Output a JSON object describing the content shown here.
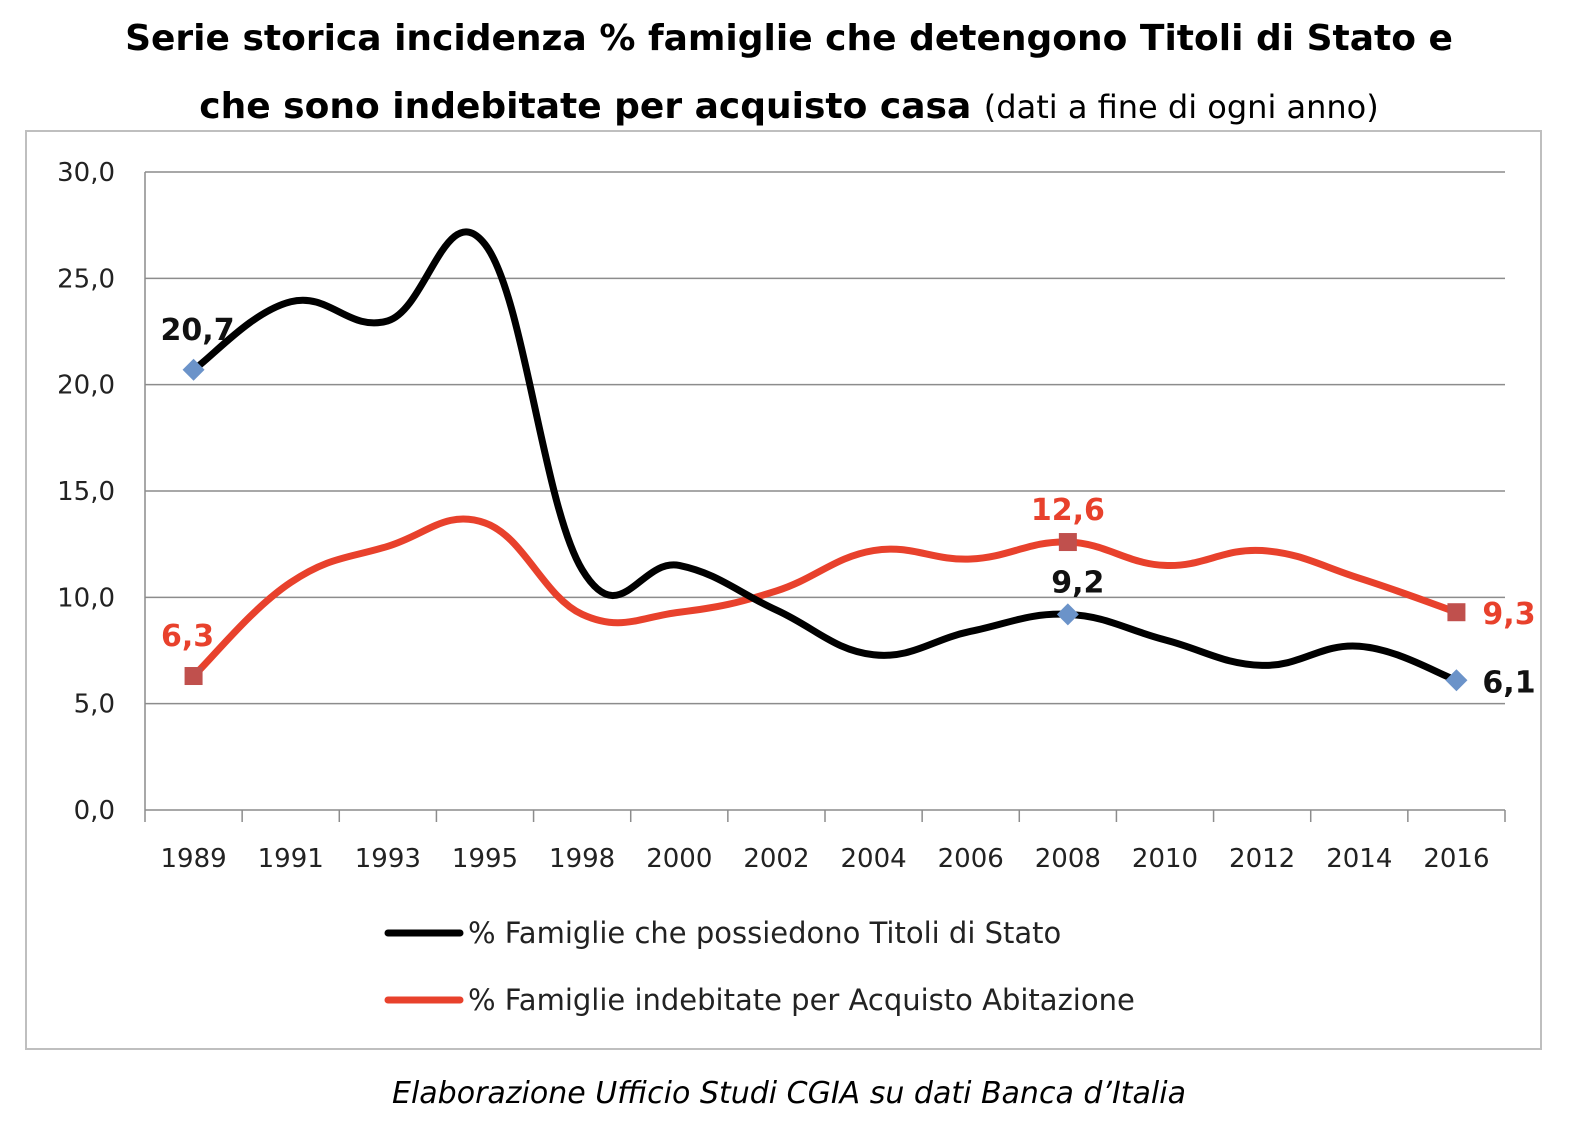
{
  "title": {
    "line1": "Serie storica incidenza % famiglie che detengono Titoli di Stato e",
    "line2_bold": "che sono indebitate per acquisto casa",
    "line2_note": "(dati a fine di ogni anno)"
  },
  "source": "Elaborazione Ufficio Studi CGIA su dati Banca d’Italia",
  "chart_data": {
    "type": "line",
    "title": "Serie storica incidenza % famiglie che detengono Titoli di Stato e che sono indebitate per acquisto casa (dati a fine di ogni anno)",
    "categories": [
      "1989",
      "1991",
      "1993",
      "1995",
      "1998",
      "2000",
      "2002",
      "2004",
      "2006",
      "2008",
      "2010",
      "2012",
      "2014",
      "2016"
    ],
    "ylim": [
      0,
      30
    ],
    "yticks": [
      "0,0",
      "5,0",
      "10,0",
      "15,0",
      "20,0",
      "25,0",
      "30,0"
    ],
    "ytick_values": [
      0,
      5,
      10,
      15,
      20,
      25,
      30
    ],
    "grid": true,
    "smooth": true,
    "legend_position": "bottom",
    "series": [
      {
        "name": "% Famiglie che possiedono Titoli di Stato",
        "color": "#000000",
        "marker_color": "#6b93c9",
        "marker": "diamond",
        "values": [
          20.7,
          23.9,
          23.0,
          26.6,
          11.3,
          11.5,
          9.4,
          7.3,
          8.4,
          9.2,
          8.0,
          6.8,
          7.7,
          6.1
        ],
        "labels": [
          {
            "index": 0,
            "text": "20,7",
            "pos": "above"
          },
          {
            "index": 9,
            "text": "9,2",
            "pos": "above"
          },
          {
            "index": 13,
            "text": "6,1",
            "pos": "right"
          }
        ]
      },
      {
        "name": "% Famiglie indebitate per Acquisto Abitazione",
        "color": "#e8412c",
        "marker_color": "#c0504d",
        "marker": "square",
        "values": [
          6.3,
          10.7,
          12.4,
          13.5,
          9.2,
          9.3,
          10.3,
          12.2,
          11.8,
          12.6,
          11.5,
          12.2,
          10.9,
          9.3
        ],
        "labels": [
          {
            "index": 0,
            "text": "6,3",
            "pos": "above-left"
          },
          {
            "index": 9,
            "text": "12,6",
            "pos": "above"
          },
          {
            "index": 13,
            "text": "9,3",
            "pos": "right"
          }
        ]
      }
    ],
    "marked_points": [
      0,
      9,
      13
    ]
  }
}
